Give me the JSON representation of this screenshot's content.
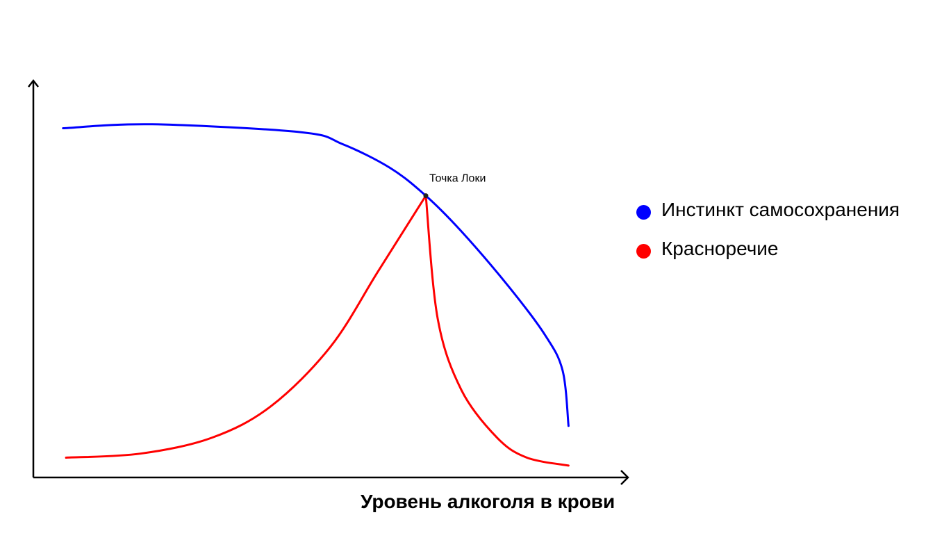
{
  "chart_data": {
    "type": "line",
    "title": "",
    "xlabel": "Уровень алкоголя в крови",
    "ylabel": "",
    "x_ticks": false,
    "y_ticks": false,
    "grid": false,
    "legend_position": "right",
    "series": [
      {
        "name": "Инстинкт самосохранения",
        "color": "#0000ff",
        "points": [
          [
            0.05,
            0.88
          ],
          [
            0.2,
            0.89
          ],
          [
            0.45,
            0.87
          ],
          [
            0.52,
            0.84
          ],
          [
            0.6,
            0.78
          ],
          [
            0.66,
            0.71
          ],
          [
            0.72,
            0.62
          ],
          [
            0.8,
            0.48
          ],
          [
            0.86,
            0.36
          ],
          [
            0.89,
            0.27
          ],
          [
            0.9,
            0.13
          ]
        ]
      },
      {
        "name": "Красноречие",
        "color": "#ff0000",
        "segments": [
          [
            [
              0.055,
              0.05
            ],
            [
              0.18,
              0.06
            ],
            [
              0.3,
              0.1
            ],
            [
              0.4,
              0.18
            ],
            [
              0.5,
              0.33
            ],
            [
              0.58,
              0.52
            ],
            [
              0.66,
              0.71
            ]
          ],
          [
            [
              0.66,
              0.71
            ],
            [
              0.68,
              0.4
            ],
            [
              0.72,
              0.22
            ],
            [
              0.78,
              0.1
            ],
            [
              0.83,
              0.05
            ],
            [
              0.9,
              0.03
            ]
          ]
        ]
      }
    ],
    "annotations": [
      {
        "text": "Точка Локи",
        "x": 0.66,
        "y": 0.71
      }
    ]
  }
}
